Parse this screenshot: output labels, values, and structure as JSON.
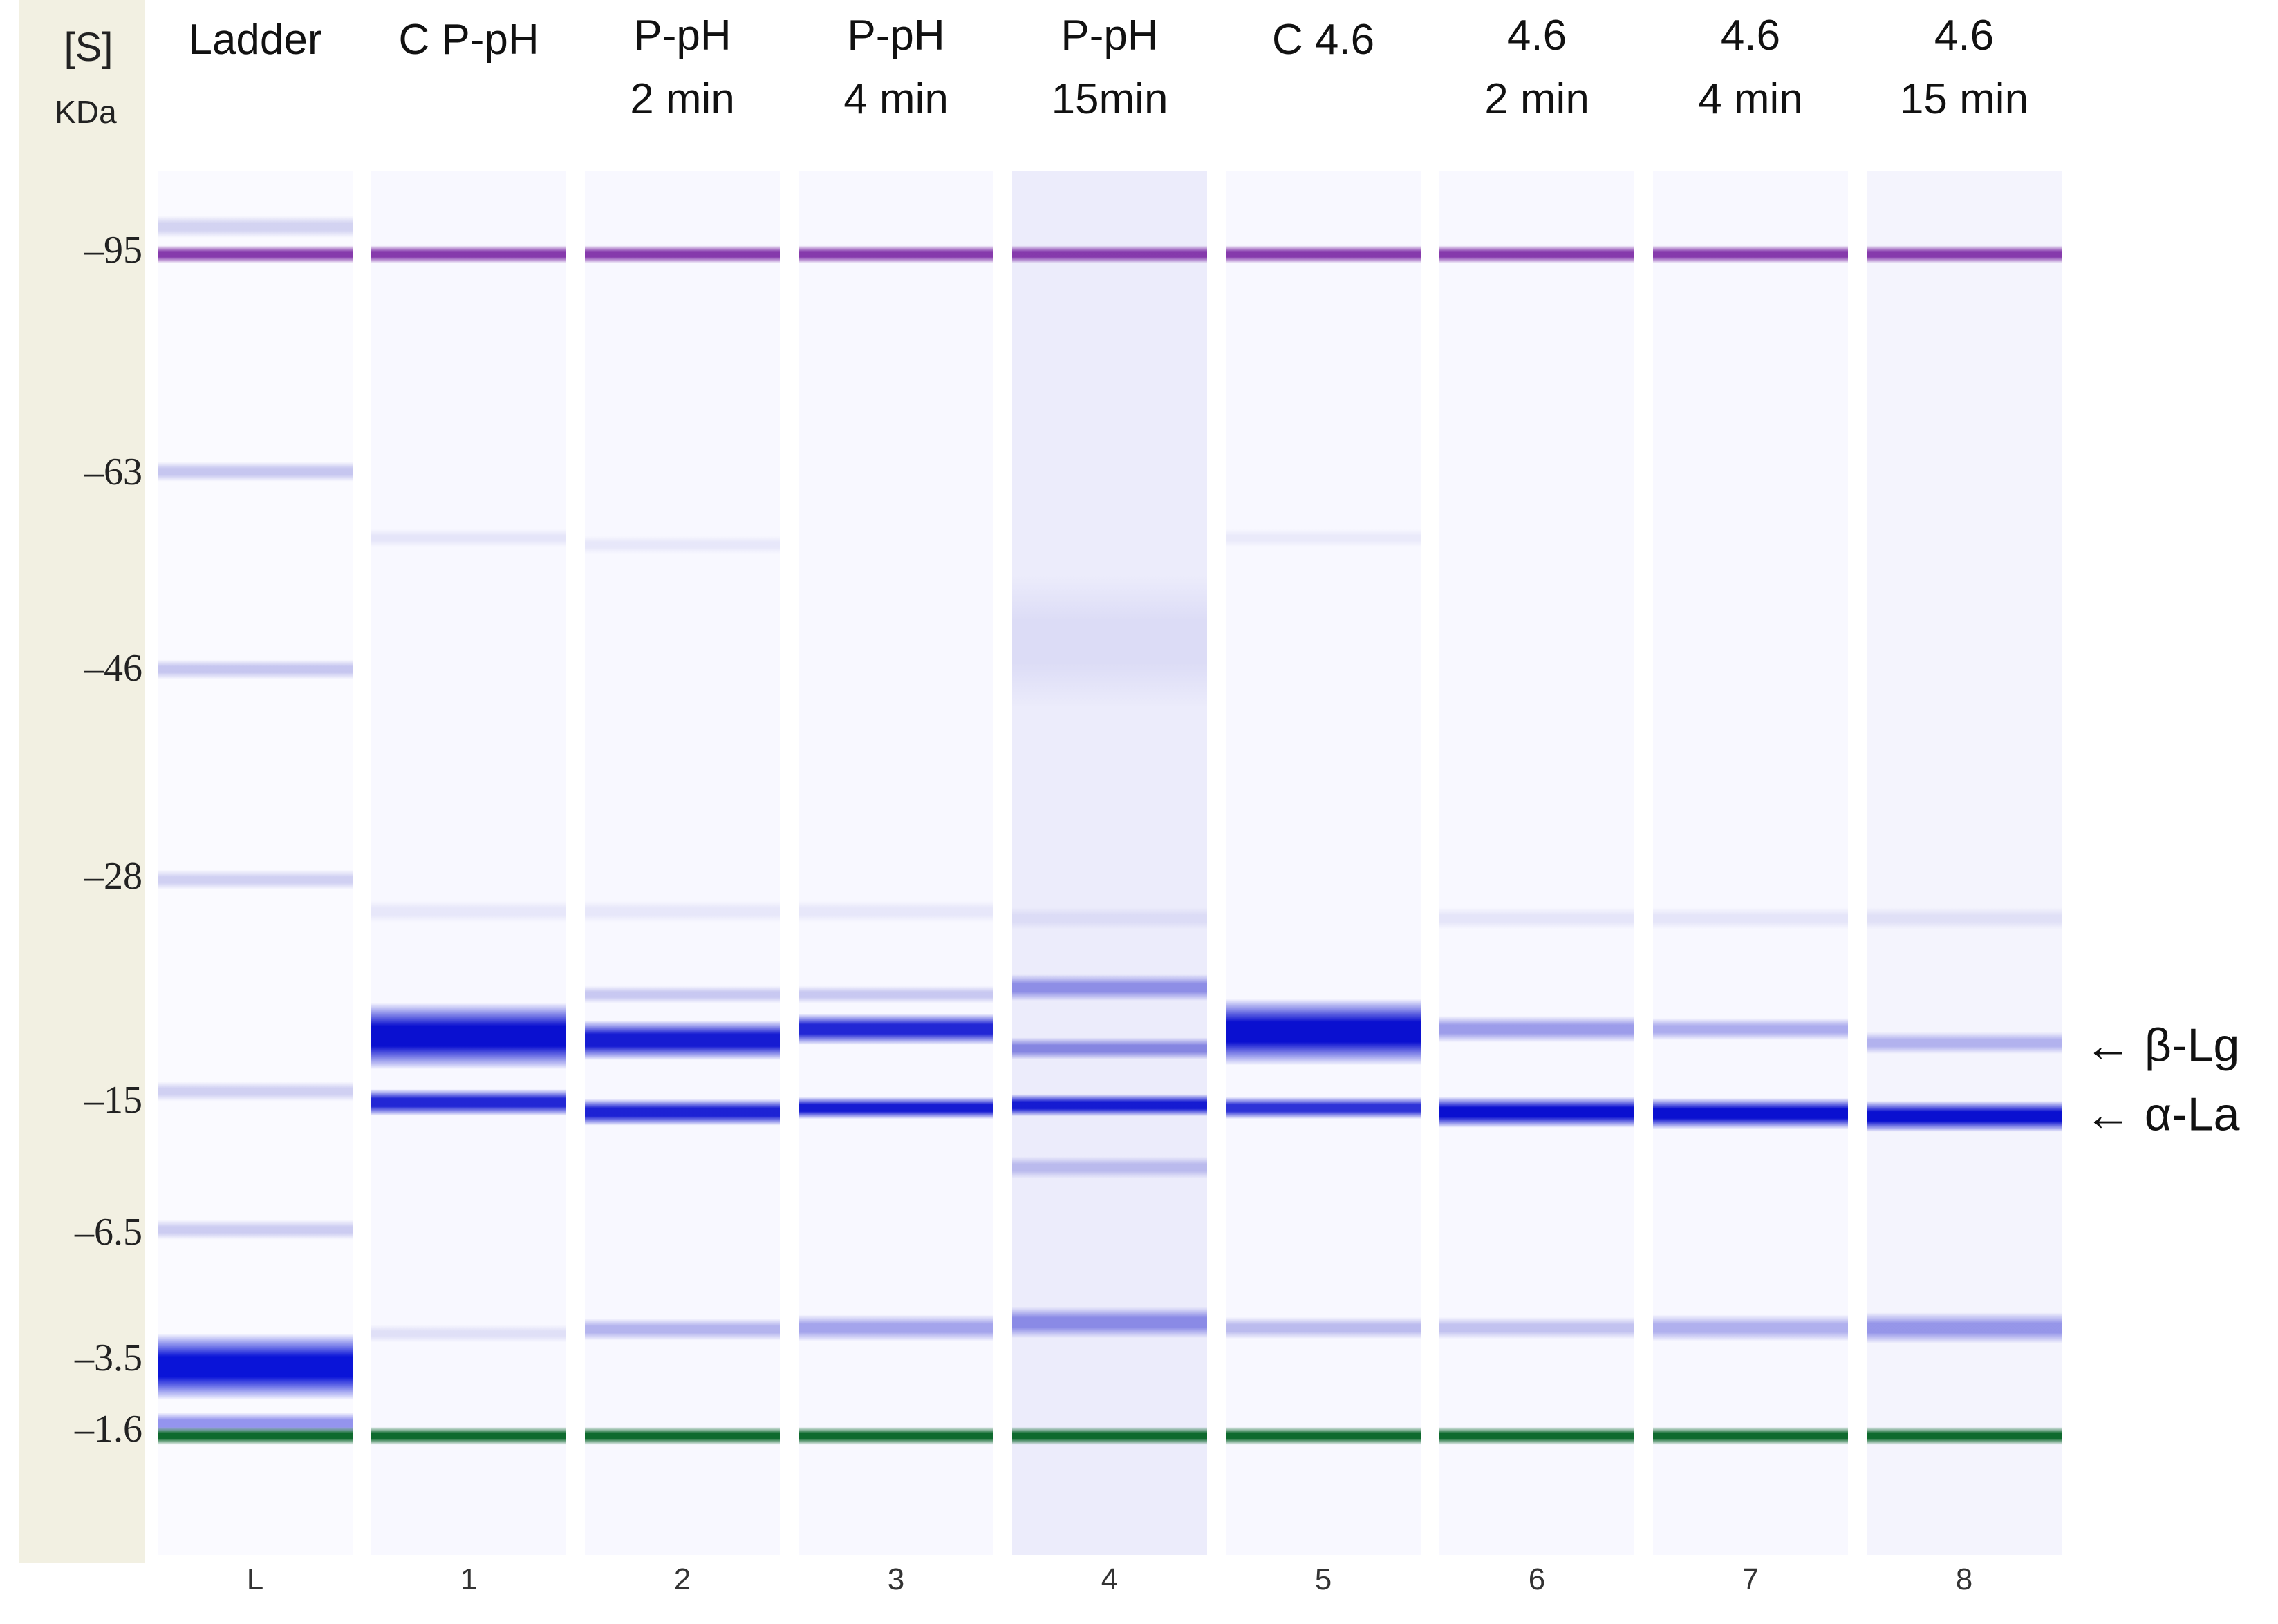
{
  "scale": {
    "concentration_label": "[S]",
    "unit_label": "KDa",
    "markers": [
      {
        "label": "–95",
        "kda": 95
      },
      {
        "label": "–63",
        "kda": 63
      },
      {
        "label": "–46",
        "kda": 46
      },
      {
        "label": "–28",
        "kda": 28
      },
      {
        "label": "–15",
        "kda": 15
      },
      {
        "label": "–6.5",
        "kda": 6.5
      },
      {
        "label": "–3.5",
        "kda": 3.5
      },
      {
        "label": "–1.6",
        "kda": 1.6
      }
    ]
  },
  "lanes": [
    {
      "id": "L",
      "title_lines": [
        "Ladder"
      ],
      "number": "L",
      "background": "#fafaff",
      "bands": [
        {
          "pos": 0.04,
          "color": "#8a8ad8",
          "intensity": 0.35,
          "thickness": 0.01
        },
        {
          "pos": 0.06,
          "color": "#8030a8",
          "intensity": 0.95,
          "thickness": 0.008
        },
        {
          "pos": 0.217,
          "color": "#7878d8",
          "intensity": 0.4,
          "thickness": 0.009
        },
        {
          "pos": 0.36,
          "color": "#7878d8",
          "intensity": 0.4,
          "thickness": 0.009
        },
        {
          "pos": 0.512,
          "color": "#7878d8",
          "intensity": 0.32,
          "thickness": 0.009
        },
        {
          "pos": 0.665,
          "color": "#7878d8",
          "intensity": 0.32,
          "thickness": 0.009
        },
        {
          "pos": 0.765,
          "color": "#7878d8",
          "intensity": 0.35,
          "thickness": 0.009
        },
        {
          "pos": 0.864,
          "color": "#0a14d8",
          "intensity": 1.0,
          "thickness": 0.03
        },
        {
          "pos": 0.905,
          "color": "#4040e0",
          "intensity": 0.55,
          "thickness": 0.01
        },
        {
          "pos": 0.914,
          "color": "#0e6a2e",
          "intensity": 1.0,
          "thickness": 0.008
        }
      ]
    },
    {
      "id": "1",
      "title_lines": [
        "C P-pH"
      ],
      "number": "1",
      "background": "#f8f8ff",
      "bands": [
        {
          "pos": 0.06,
          "color": "#8030a8",
          "intensity": 0.95,
          "thickness": 0.008
        },
        {
          "pos": 0.265,
          "color": "#9a9ae0",
          "intensity": 0.2,
          "thickness": 0.008
        },
        {
          "pos": 0.535,
          "color": "#9a9ae0",
          "intensity": 0.18,
          "thickness": 0.01
        },
        {
          "pos": 0.625,
          "color": "#0a10d0",
          "intensity": 1.0,
          "thickness": 0.03
        },
        {
          "pos": 0.673,
          "color": "#0a10d0",
          "intensity": 0.9,
          "thickness": 0.012
        },
        {
          "pos": 0.84,
          "color": "#9a9ae0",
          "intensity": 0.25,
          "thickness": 0.008
        },
        {
          "pos": 0.914,
          "color": "#0e6a2e",
          "intensity": 1.0,
          "thickness": 0.008
        }
      ]
    },
    {
      "id": "2",
      "title_lines": [
        "P-pH",
        "2 min"
      ],
      "number": "2",
      "background": "#f8f8ff",
      "bands": [
        {
          "pos": 0.06,
          "color": "#8030a8",
          "intensity": 0.95,
          "thickness": 0.008
        },
        {
          "pos": 0.27,
          "color": "#9a9ae0",
          "intensity": 0.18,
          "thickness": 0.008
        },
        {
          "pos": 0.535,
          "color": "#9a9ae0",
          "intensity": 0.18,
          "thickness": 0.01
        },
        {
          "pos": 0.595,
          "color": "#7070d8",
          "intensity": 0.35,
          "thickness": 0.008
        },
        {
          "pos": 0.628,
          "color": "#0a10d0",
          "intensity": 0.95,
          "thickness": 0.018
        },
        {
          "pos": 0.68,
          "color": "#0a10d0",
          "intensity": 0.92,
          "thickness": 0.012
        },
        {
          "pos": 0.837,
          "color": "#6060d8",
          "intensity": 0.45,
          "thickness": 0.01
        },
        {
          "pos": 0.914,
          "color": "#0e6a2e",
          "intensity": 1.0,
          "thickness": 0.008
        }
      ]
    },
    {
      "id": "3",
      "title_lines": [
        "P-pH",
        "4 min"
      ],
      "number": "3",
      "background": "#f8f8ff",
      "bands": [
        {
          "pos": 0.06,
          "color": "#8030a8",
          "intensity": 0.95,
          "thickness": 0.008
        },
        {
          "pos": 0.535,
          "color": "#9a9ae0",
          "intensity": 0.18,
          "thickness": 0.01
        },
        {
          "pos": 0.595,
          "color": "#7070d8",
          "intensity": 0.35,
          "thickness": 0.008
        },
        {
          "pos": 0.62,
          "color": "#0a10d0",
          "intensity": 0.9,
          "thickness": 0.014
        },
        {
          "pos": 0.677,
          "color": "#0a10d0",
          "intensity": 0.95,
          "thickness": 0.01
        },
        {
          "pos": 0.836,
          "color": "#5050d8",
          "intensity": 0.5,
          "thickness": 0.012
        },
        {
          "pos": 0.914,
          "color": "#0e6a2e",
          "intensity": 1.0,
          "thickness": 0.008
        }
      ]
    },
    {
      "id": "4",
      "title_lines": [
        "P-pH",
        "15min"
      ],
      "number": "4",
      "background": "#ececfb",
      "bands": [
        {
          "pos": 0.06,
          "color": "#8030a8",
          "intensity": 0.95,
          "thickness": 0.008
        },
        {
          "pos": 0.34,
          "color": "#c8c8f0",
          "intensity": 0.45,
          "thickness": 0.06
        },
        {
          "pos": 0.54,
          "color": "#9a9ae0",
          "intensity": 0.2,
          "thickness": 0.01
        },
        {
          "pos": 0.59,
          "color": "#5050d8",
          "intensity": 0.6,
          "thickness": 0.012
        },
        {
          "pos": 0.634,
          "color": "#4040d0",
          "intensity": 0.6,
          "thickness": 0.01
        },
        {
          "pos": 0.675,
          "color": "#0a10d0",
          "intensity": 0.95,
          "thickness": 0.01
        },
        {
          "pos": 0.72,
          "color": "#7070d8",
          "intensity": 0.4,
          "thickness": 0.01
        },
        {
          "pos": 0.832,
          "color": "#4848d8",
          "intensity": 0.6,
          "thickness": 0.014
        },
        {
          "pos": 0.914,
          "color": "#0e6a2e",
          "intensity": 1.0,
          "thickness": 0.008
        }
      ]
    },
    {
      "id": "5",
      "title_lines": [
        "C 4.6"
      ],
      "number": "5",
      "background": "#f8f8ff",
      "bands": [
        {
          "pos": 0.06,
          "color": "#8030a8",
          "intensity": 0.95,
          "thickness": 0.008
        },
        {
          "pos": 0.265,
          "color": "#9a9ae0",
          "intensity": 0.15,
          "thickness": 0.008
        },
        {
          "pos": 0.622,
          "color": "#0a10d0",
          "intensity": 1.0,
          "thickness": 0.03
        },
        {
          "pos": 0.677,
          "color": "#0a10d0",
          "intensity": 0.85,
          "thickness": 0.01
        },
        {
          "pos": 0.836,
          "color": "#7070d8",
          "intensity": 0.45,
          "thickness": 0.01
        },
        {
          "pos": 0.914,
          "color": "#0e6a2e",
          "intensity": 1.0,
          "thickness": 0.008
        }
      ]
    },
    {
      "id": "6",
      "title_lines": [
        "4.6",
        "2 min"
      ],
      "number": "6",
      "background": "#f8f8ff",
      "bands": [
        {
          "pos": 0.06,
          "color": "#8030a8",
          "intensity": 0.95,
          "thickness": 0.008
        },
        {
          "pos": 0.54,
          "color": "#9a9ae0",
          "intensity": 0.2,
          "thickness": 0.01
        },
        {
          "pos": 0.62,
          "color": "#5050d8",
          "intensity": 0.55,
          "thickness": 0.012
        },
        {
          "pos": 0.68,
          "color": "#0a10d0",
          "intensity": 1.0,
          "thickness": 0.014
        },
        {
          "pos": 0.836,
          "color": "#7070d8",
          "intensity": 0.4,
          "thickness": 0.01
        },
        {
          "pos": 0.914,
          "color": "#0e6a2e",
          "intensity": 1.0,
          "thickness": 0.008
        }
      ]
    },
    {
      "id": "7",
      "title_lines": [
        "4.6",
        "4 min"
      ],
      "number": "7",
      "background": "#f8f8ff",
      "bands": [
        {
          "pos": 0.06,
          "color": "#8030a8",
          "intensity": 0.95,
          "thickness": 0.008
        },
        {
          "pos": 0.54,
          "color": "#9a9ae0",
          "intensity": 0.2,
          "thickness": 0.01
        },
        {
          "pos": 0.62,
          "color": "#5050d8",
          "intensity": 0.45,
          "thickness": 0.01
        },
        {
          "pos": 0.681,
          "color": "#0a10d0",
          "intensity": 1.0,
          "thickness": 0.014
        },
        {
          "pos": 0.836,
          "color": "#5858d8",
          "intensity": 0.45,
          "thickness": 0.012
        },
        {
          "pos": 0.914,
          "color": "#0e6a2e",
          "intensity": 1.0,
          "thickness": 0.008
        }
      ]
    },
    {
      "id": "8",
      "title_lines": [
        "4.6",
        "15 min"
      ],
      "number": "8",
      "background": "#f4f4fd",
      "bands": [
        {
          "pos": 0.06,
          "color": "#8030a8",
          "intensity": 0.95,
          "thickness": 0.008
        },
        {
          "pos": 0.54,
          "color": "#9a9ae0",
          "intensity": 0.22,
          "thickness": 0.01
        },
        {
          "pos": 0.63,
          "color": "#5050d8",
          "intensity": 0.4,
          "thickness": 0.01
        },
        {
          "pos": 0.683,
          "color": "#0a10d0",
          "intensity": 1.0,
          "thickness": 0.014
        },
        {
          "pos": 0.836,
          "color": "#4848d8",
          "intensity": 0.55,
          "thickness": 0.014
        },
        {
          "pos": 0.914,
          "color": "#0e6a2e",
          "intensity": 1.0,
          "thickness": 0.008
        }
      ]
    }
  ],
  "annotations": [
    {
      "text": "← β-Lg",
      "target_pos": 0.632
    },
    {
      "text": "← α-La",
      "target_pos": 0.682
    }
  ],
  "colors": {
    "sidebar": "#f2f0e2",
    "marker_purple": "#8030a8",
    "marker_green": "#0e6a2e",
    "band_blue": "#0a10d0"
  }
}
